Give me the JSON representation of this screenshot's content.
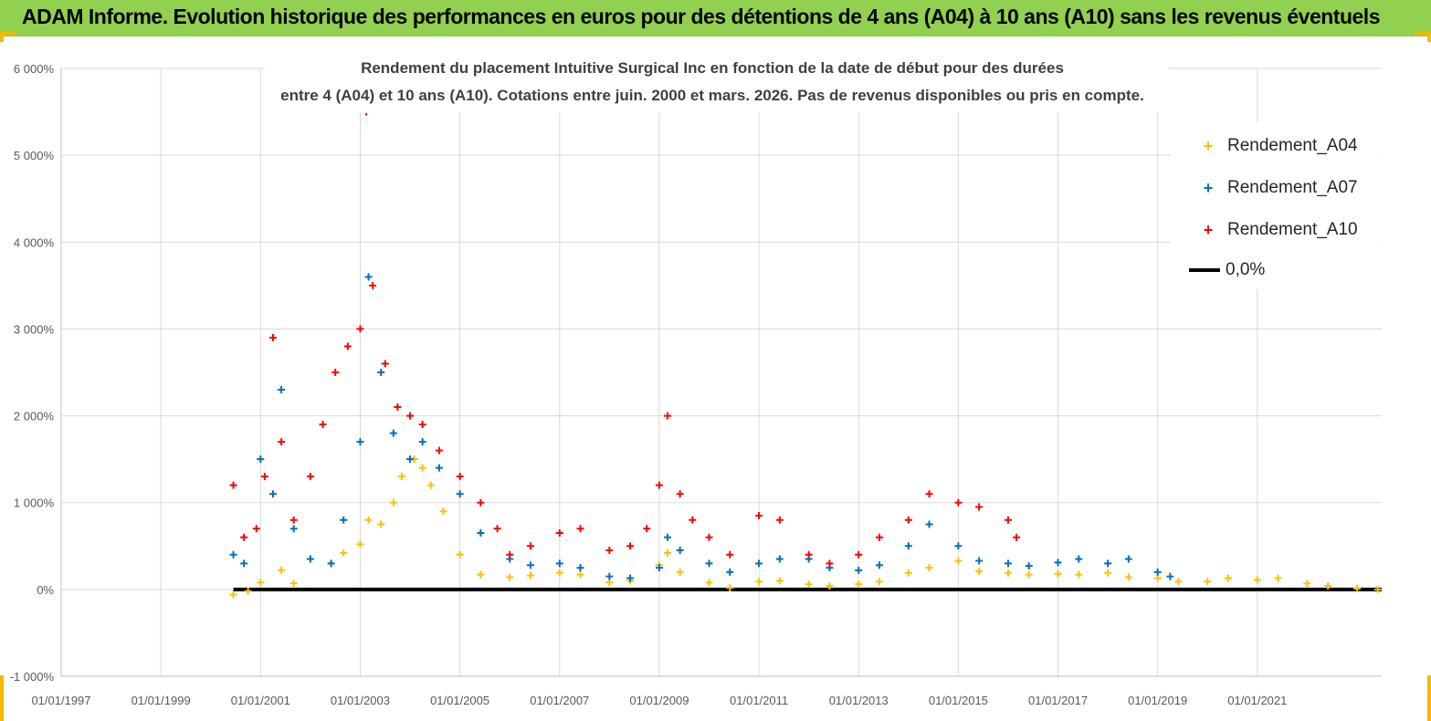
{
  "header": {
    "title": "ADAM Informe. Evolution historique des performances en euros pour des détentions de 4 ans (A04) à 10 ans (A10) sans les revenus éventuels"
  },
  "colors": {
    "banner": "#92d050",
    "accent": "#f5b800",
    "a04": "#ffc000",
    "a07": "#0070c0",
    "a10": "#ff0000",
    "zero": "#000000"
  },
  "chart_data": {
    "type": "scatter",
    "title_lines": [
      "Rendement du placement Intuitive Surgical Inc en fonction de la date de début pour des durées",
      "entre 4 (A04) et 10 ans (A10).  Cotations entre juin. 2000 et mars. 2026.  Pas de revenus disponibles ou pris en compte."
    ],
    "xlabel": "",
    "ylabel": "",
    "x_range": [
      "1997-01-01",
      "2023-06-30"
    ],
    "ylim": [
      -1000,
      6000
    ],
    "y_ticks": [
      -1000,
      0,
      1000,
      2000,
      3000,
      4000,
      5000,
      6000
    ],
    "y_tick_labels": [
      "-1 000%",
      "0%",
      "1 000%",
      "2 000%",
      "3 000%",
      "4 000%",
      "5 000%",
      "6 000%"
    ],
    "x_tick_labels": [
      "01/01/1997",
      "01/01/1999",
      "01/01/2001",
      "01/01/2003",
      "01/01/2005",
      "01/01/2007",
      "01/01/2009",
      "01/01/2011",
      "01/01/2013",
      "01/01/2015",
      "01/01/2017",
      "01/01/2019",
      "01/01/2021"
    ],
    "x_tick_years": [
      1997,
      1999,
      2001,
      2003,
      2005,
      2007,
      2009,
      2011,
      2013,
      2015,
      2017,
      2019,
      2021
    ],
    "gridlines": true,
    "legend_position": "top-right",
    "series": [
      {
        "name": "Rendement_A04",
        "color": "#ffc000",
        "marker": "+",
        "x": [
          "2000-06-15",
          "2000-10-01",
          "2001-01-01",
          "2001-06-01",
          "2001-09-01",
          "2002-01-01",
          "2002-06-01",
          "2002-09-01",
          "2003-01-01",
          "2003-03-01",
          "2003-06-01",
          "2003-09-01",
          "2003-11-01",
          "2004-02-01",
          "2004-04-01",
          "2004-06-01",
          "2004-09-01",
          "2005-01-01",
          "2005-06-01",
          "2006-01-01",
          "2006-06-01",
          "2007-01-01",
          "2007-06-01",
          "2008-01-01",
          "2008-06-01",
          "2009-01-01",
          "2009-03-01",
          "2009-06-01",
          "2010-01-01",
          "2010-06-01",
          "2011-01-01",
          "2011-06-01",
          "2012-01-01",
          "2012-06-01",
          "2013-01-01",
          "2013-06-01",
          "2014-01-01",
          "2014-06-01",
          "2015-01-01",
          "2015-06-01",
          "2016-01-01",
          "2016-06-01",
          "2017-01-01",
          "2017-06-01",
          "2018-01-01",
          "2018-06-01",
          "2019-01-01",
          "2019-06-01",
          "2020-01-01",
          "2020-06-01",
          "2021-01-01",
          "2021-06-01",
          "2022-01-01",
          "2022-06-01",
          "2023-01-01",
          "2023-06-01"
        ],
        "y": [
          -60,
          -20,
          80,
          220,
          70,
          350,
          300,
          420,
          520,
          800,
          750,
          1000,
          1300,
          1500,
          1400,
          1200,
          900,
          400,
          170,
          140,
          160,
          190,
          170,
          80,
          100,
          280,
          420,
          200,
          80,
          20,
          90,
          100,
          60,
          40,
          60,
          90,
          190,
          250,
          330,
          210,
          190,
          170,
          180,
          170,
          190,
          140,
          130,
          90,
          90,
          130,
          110,
          130,
          70,
          40,
          10,
          0
        ]
      },
      {
        "name": "Rendement_A07",
        "color": "#0070c0",
        "marker": "+",
        "x": [
          "2000-06-15",
          "2000-09-01",
          "2001-01-01",
          "2001-04-01",
          "2001-06-01",
          "2001-09-01",
          "2002-01-01",
          "2002-06-01",
          "2002-09-01",
          "2003-01-01",
          "2003-03-01",
          "2003-06-01",
          "2003-09-01",
          "2004-01-01",
          "2004-04-01",
          "2004-08-01",
          "2005-01-01",
          "2005-06-01",
          "2006-01-01",
          "2006-06-01",
          "2007-01-01",
          "2007-06-01",
          "2008-01-01",
          "2008-06-01",
          "2009-01-01",
          "2009-03-01",
          "2009-06-01",
          "2010-01-01",
          "2010-06-01",
          "2011-01-01",
          "2011-06-01",
          "2012-01-01",
          "2012-06-01",
          "2013-01-01",
          "2013-06-01",
          "2014-01-01",
          "2014-06-01",
          "2015-01-01",
          "2015-06-01",
          "2016-01-01",
          "2016-06-01",
          "2017-01-01",
          "2017-06-01",
          "2018-01-01",
          "2018-06-01",
          "2019-01-01",
          "2019-04-01"
        ],
        "y": [
          400,
          300,
          1500,
          1100,
          2300,
          700,
          350,
          300,
          800,
          1700,
          3600,
          2500,
          1800,
          1500,
          1700,
          1400,
          1100,
          650,
          350,
          280,
          300,
          250,
          150,
          130,
          250,
          600,
          450,
          300,
          200,
          300,
          350,
          350,
          250,
          220,
          280,
          500,
          750,
          500,
          330,
          300,
          270,
          310,
          350,
          300,
          350,
          200,
          150
        ]
      },
      {
        "name": "Rendement_A10",
        "color": "#ff0000",
        "marker": "+",
        "x": [
          "2000-06-15",
          "2000-09-01",
          "2000-12-01",
          "2001-02-01",
          "2001-04-01",
          "2001-06-01",
          "2001-09-01",
          "2002-01-01",
          "2002-04-01",
          "2002-07-01",
          "2002-10-01",
          "2003-01-01",
          "2003-02-15",
          "2003-04-01",
          "2003-07-01",
          "2003-10-01",
          "2004-01-01",
          "2004-04-01",
          "2004-08-01",
          "2005-01-01",
          "2005-06-01",
          "2005-10-01",
          "2006-01-01",
          "2006-06-01",
          "2007-01-01",
          "2007-06-01",
          "2008-01-01",
          "2008-06-01",
          "2008-10-01",
          "2009-01-01",
          "2009-03-01",
          "2009-06-01",
          "2009-09-01",
          "2010-01-01",
          "2010-06-01",
          "2011-01-01",
          "2011-06-01",
          "2012-01-01",
          "2012-06-01",
          "2013-01-01",
          "2013-06-01",
          "2014-01-01",
          "2014-06-01",
          "2015-01-01",
          "2015-06-01",
          "2016-01-01",
          "2016-03-01"
        ],
        "y": [
          1200,
          600,
          700,
          1300,
          2900,
          1700,
          800,
          1300,
          1900,
          2500,
          2800,
          3000,
          5500,
          3500,
          2600,
          2100,
          2000,
          1900,
          1600,
          1300,
          1000,
          700,
          400,
          500,
          650,
          700,
          450,
          500,
          700,
          1200,
          2000,
          1100,
          800,
          600,
          400,
          850,
          800,
          400,
          300,
          400,
          600,
          800,
          1100,
          1000,
          950,
          800,
          600
        ]
      },
      {
        "name": "0,0%",
        "color": "#000000",
        "marker": "line",
        "x": [
          "2000-06-15",
          "2023-06-30"
        ],
        "y": [
          0,
          0
        ]
      }
    ]
  }
}
